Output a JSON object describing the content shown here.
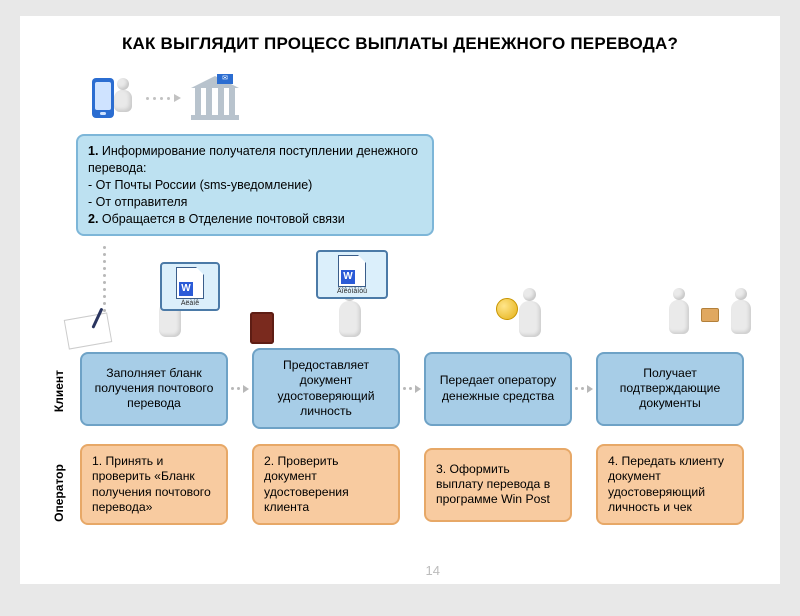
{
  "title": "КАК ВЫГЛЯДИТ ПРОЦЕСС ВЫПЛАТЫ ДЕНЕЖНОГО ПЕРЕВОДА?",
  "page_number": "14",
  "colors": {
    "client_box_bg": "#a7cde7",
    "client_box_border": "#6ea2c6",
    "operator_box_bg": "#f8cba0",
    "operator_box_border": "#e7a867",
    "info_bg": "#bde1f1",
    "info_border": "#7db6d8",
    "slide_bg": "#ffffff",
    "page_bg": "#e8e8e8"
  },
  "info": {
    "lines": [
      "<b>1.</b> Информирование получателя поступлении денежного перевода:",
      "- От Почты России (sms-уведомление)",
      "- От отправителя",
      "<b>2.</b> Обращается в Отделение почтовой связи"
    ],
    "plain": "1. Информирование получателя поступлении денежного перевода:\n- От Почты России (sms-уведомление)\n- От отправителя\n2. Обращается в Отделение почтовой связи"
  },
  "word_docs": {
    "doc1_label": "Áëàíê",
    "doc2_label": "Äîêóìåíòû"
  },
  "lanes": {
    "client": "Клиент",
    "operator": "Оператор"
  },
  "client_steps": [
    "Заполняет бланк получения почтового перевода",
    "Предоставляет документ удостоверяющий личность",
    "Передает оператору денежные средства",
    "Получает подтверждающие документы"
  ],
  "operator_steps": [
    "1. Принять и проверить «Бланк получения почтового перевода»",
    "2. Проверить документ удостоверения клиента",
    "3. Оформить выплату перевода в программе Win Post",
    "4. Передать клиенту документ удостоверяющий личность и чек"
  ],
  "layout": {
    "slide_w": 760,
    "slide_h": 568,
    "box_radius": 8,
    "font_title": 17,
    "font_box": 12
  }
}
